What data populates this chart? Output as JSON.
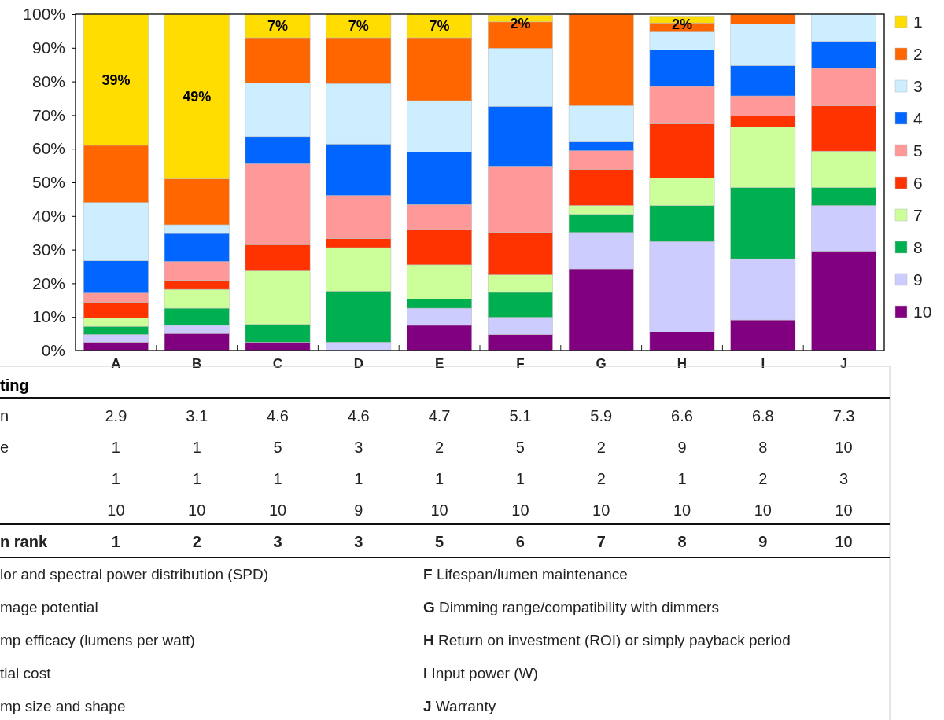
{
  "chart_data": {
    "type": "bar",
    "stacked": true,
    "categories": [
      "A",
      "B",
      "C",
      "D",
      "E",
      "F",
      "G",
      "H",
      "I",
      "J"
    ],
    "ylim": [
      0,
      100
    ],
    "yticks": [
      {
        "value": 0,
        "label": "0%"
      },
      {
        "value": 10,
        "label": "10%"
      },
      {
        "value": 20,
        "label": "20%"
      },
      {
        "value": 30,
        "label": "30%"
      },
      {
        "value": 40,
        "label": "40%"
      },
      {
        "value": 50,
        "label": "50%"
      },
      {
        "value": 60,
        "label": "60%"
      },
      {
        "value": 70,
        "label": "70%"
      },
      {
        "value": 80,
        "label": "80%"
      },
      {
        "value": 90,
        "label": "90%"
      },
      {
        "value": 100,
        "label": "100%"
      }
    ],
    "legend": "right",
    "series": [
      {
        "name": "10",
        "color": "#800080",
        "values": [
          2.5,
          5.1,
          2.5,
          0,
          7.5,
          4.8,
          24.3,
          5.5,
          9.1,
          29.6
        ]
      },
      {
        "name": "9",
        "color": "#ccccff",
        "values": [
          2.3,
          2.4,
          0,
          2.5,
          5.1,
          5.1,
          10.8,
          26.9,
          18.2,
          13.5
        ]
      },
      {
        "name": "8",
        "color": "#00b050",
        "values": [
          2.4,
          5.1,
          5.3,
          15.2,
          2.7,
          7.4,
          5.4,
          10.7,
          21.2,
          5.4
        ]
      },
      {
        "name": "7",
        "color": "#ccff99",
        "values": [
          2.5,
          5.6,
          15.9,
          12.9,
          10.2,
          5.2,
          2.6,
          8.2,
          18,
          10.8
        ]
      },
      {
        "name": "6",
        "color": "#ff3300",
        "values": [
          4.7,
          2.7,
          7.8,
          2.7,
          10.5,
          12.6,
          10.8,
          16.1,
          3.2,
          13.5
        ]
      },
      {
        "name": "5",
        "color": "#ff9999",
        "values": [
          2.7,
          5.6,
          24,
          12.8,
          7.4,
          19.7,
          5.5,
          11.1,
          6,
          11.1
        ]
      },
      {
        "name": "4",
        "color": "#0066ff",
        "values": [
          9.6,
          8.3,
          8.1,
          15.3,
          15.6,
          17.8,
          2.6,
          10.9,
          9,
          8
        ]
      },
      {
        "name": "3",
        "color": "#cceeff",
        "values": [
          17.3,
          2.6,
          16,
          18,
          15.3,
          17.3,
          10.8,
          5.3,
          12.4,
          8.1
        ]
      },
      {
        "name": "2",
        "color": "#ff6600",
        "values": [
          17,
          13.6,
          13.4,
          13.6,
          18.7,
          7.8,
          27.2,
          2.7,
          2.9,
          0
        ]
      },
      {
        "name": "1",
        "color": "#ffdd00",
        "values": [
          39,
          49,
          7,
          7,
          7,
          2,
          0,
          2,
          0,
          0
        ],
        "value_labels": [
          "39%",
          "49%",
          "7%",
          "7%",
          "7%",
          "2%",
          null,
          "2%",
          null,
          null
        ]
      }
    ],
    "annotations": [
      "ting",
      "n",
      "2.9",
      "3.1",
      "4.6",
      "4.6",
      "4.7",
      "5.1",
      "5.9",
      "6.6",
      "6.8",
      "7.3",
      "e",
      "1",
      "1",
      "5",
      "3",
      "2",
      "5",
      "2",
      "9",
      "8",
      "10",
      null,
      "1",
      "1",
      "1",
      "1",
      "1",
      "1",
      "2",
      "1",
      "2",
      "3",
      null,
      "10",
      "10",
      "10",
      "9",
      "10",
      "10",
      "10",
      "10",
      "10",
      "10",
      "n rank",
      "1",
      "2",
      "3",
      "3",
      "5",
      "6",
      "7",
      "8",
      "9",
      "10",
      "lor and spectral power distribution (SPD)",
      "mage potential",
      "mp efficacy (lumens per watt)",
      "tial cost",
      "mp size and shape",
      "F Lifespan/lumen maintenance",
      "G Dimming range/compatibility  with dimmers",
      "H Return on investment (ROI) or simply payback period",
      "I Input power (W)",
      "J Warranty"
    ]
  }
}
